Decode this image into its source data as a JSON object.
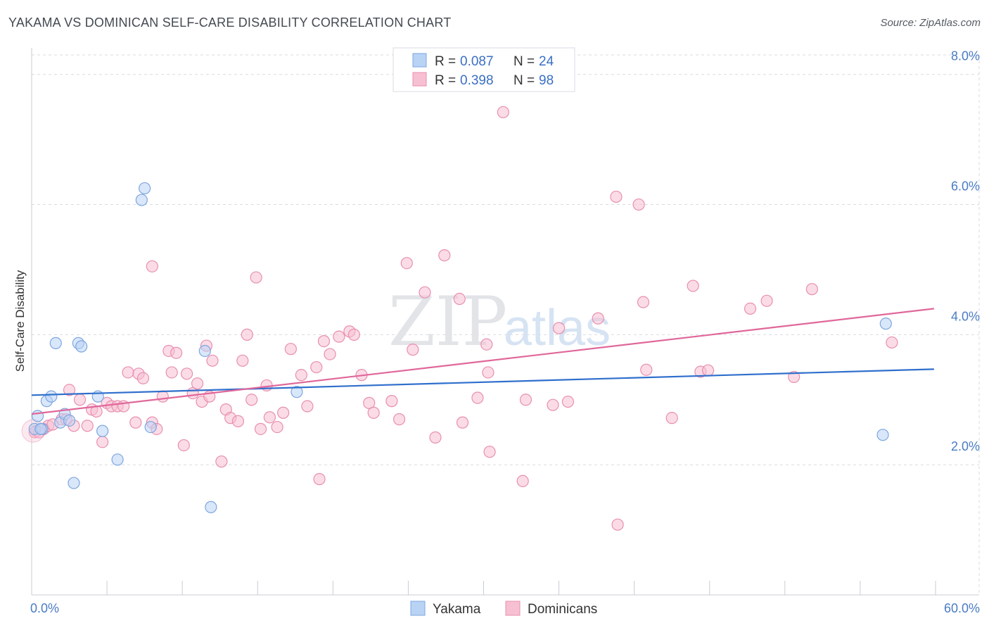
{
  "header": {
    "title": "YAKAMA VS DOMINICAN SELF-CARE DISABILITY CORRELATION CHART",
    "source": "Source: ZipAtlas.com"
  },
  "watermark": {
    "zip": "ZIP",
    "atlas": "atlas"
  },
  "legend": {
    "items": [
      {
        "r_label": "R =",
        "r_value": "0.087",
        "n_label": "N =",
        "n_value": "24"
      },
      {
        "r_label": "R =",
        "r_value": "0.398",
        "n_label": "N =",
        "n_value": "98"
      }
    ]
  },
  "colors": {
    "yakama_fill": "#b9d3f5",
    "yakama_stroke": "#7ea6de",
    "yakama_line": "#2f6fcc",
    "dominican_fill": "#f7bfd2",
    "dominican_stroke": "#e88fb0",
    "dominican_line": "#e0679a",
    "grid": "#d8dbe0",
    "tick_label": "#4a7cc4"
  },
  "chart_data": {
    "type": "scatter",
    "title": "YAKAMA VS DOMINICAN SELF-CARE DISABILITY CORRELATION CHART",
    "xlabel": "",
    "ylabel": "Self-Care Disability",
    "xlim": [
      0,
      60
    ],
    "ylim": [
      0,
      8.3
    ],
    "x_tick_labels": [
      "0.0%",
      "60.0%"
    ],
    "y_ticks": [
      2,
      4,
      6,
      8
    ],
    "y_tick_labels": [
      "2.0%",
      "4.0%",
      "6.0%",
      "8.0%"
    ],
    "grid": true,
    "legend_position": "top-center",
    "series": [
      {
        "name": "Yakama",
        "R": 0.087,
        "N": 24,
        "trend": {
          "x": [
            0,
            59.9
          ],
          "y": [
            3.07,
            3.47
          ]
        },
        "points": [
          [
            0.2,
            2.55
          ],
          [
            0.4,
            2.75
          ],
          [
            0.7,
            2.55
          ],
          [
            1.0,
            2.98
          ],
          [
            1.3,
            3.05
          ],
          [
            1.6,
            3.87
          ],
          [
            1.9,
            2.65
          ],
          [
            2.2,
            2.78
          ],
          [
            2.5,
            2.68
          ],
          [
            2.8,
            1.72
          ],
          [
            3.1,
            3.87
          ],
          [
            3.3,
            3.82
          ],
          [
            4.4,
            3.05
          ],
          [
            4.7,
            2.52
          ],
          [
            5.7,
            2.08
          ],
          [
            7.3,
            6.07
          ],
          [
            7.5,
            6.25
          ],
          [
            7.9,
            2.58
          ],
          [
            11.5,
            3.75
          ],
          [
            11.9,
            1.35
          ],
          [
            17.6,
            3.12
          ],
          [
            56.5,
            2.46
          ],
          [
            56.7,
            4.17
          ],
          [
            0.6,
            2.55
          ]
        ]
      },
      {
        "name": "Dominicans",
        "R": 0.398,
        "N": 98,
        "trend": {
          "x": [
            0,
            59.9
          ],
          "y": [
            2.78,
            4.4
          ]
        },
        "points": [
          [
            0.3,
            2.52
          ],
          [
            0.8,
            2.55
          ],
          [
            1.1,
            2.6
          ],
          [
            1.4,
            2.62
          ],
          [
            2.0,
            2.7
          ],
          [
            2.5,
            3.15
          ],
          [
            2.8,
            2.6
          ],
          [
            3.2,
            3.0
          ],
          [
            3.7,
            2.6
          ],
          [
            4.0,
            2.85
          ],
          [
            4.3,
            2.82
          ],
          [
            4.7,
            2.35
          ],
          [
            5.0,
            2.95
          ],
          [
            5.3,
            2.9
          ],
          [
            5.7,
            2.9
          ],
          [
            6.1,
            2.9
          ],
          [
            6.4,
            3.42
          ],
          [
            6.9,
            2.65
          ],
          [
            7.1,
            3.4
          ],
          [
            7.4,
            3.33
          ],
          [
            8.0,
            2.65
          ],
          [
            8.0,
            5.05
          ],
          [
            8.3,
            2.55
          ],
          [
            8.7,
            3.05
          ],
          [
            9.1,
            3.75
          ],
          [
            9.3,
            3.42
          ],
          [
            10.1,
            2.3
          ],
          [
            10.3,
            3.4
          ],
          [
            10.7,
            3.1
          ],
          [
            11.0,
            3.25
          ],
          [
            11.3,
            2.97
          ],
          [
            11.6,
            3.83
          ],
          [
            11.8,
            3.05
          ],
          [
            12.0,
            3.6
          ],
          [
            12.6,
            2.05
          ],
          [
            12.9,
            2.85
          ],
          [
            13.2,
            2.72
          ],
          [
            13.7,
            2.67
          ],
          [
            14.0,
            3.6
          ],
          [
            14.3,
            4.0
          ],
          [
            14.6,
            3.0
          ],
          [
            14.9,
            4.88
          ],
          [
            15.2,
            2.55
          ],
          [
            15.6,
            3.22
          ],
          [
            15.8,
            2.73
          ],
          [
            16.3,
            2.58
          ],
          [
            16.7,
            2.8
          ],
          [
            17.2,
            3.78
          ],
          [
            17.9,
            3.38
          ],
          [
            18.3,
            2.9
          ],
          [
            18.9,
            3.5
          ],
          [
            19.1,
            1.78
          ],
          [
            19.4,
            3.9
          ],
          [
            19.8,
            3.7
          ],
          [
            20.4,
            3.97
          ],
          [
            21.1,
            4.05
          ],
          [
            21.4,
            4.0
          ],
          [
            21.9,
            3.38
          ],
          [
            22.4,
            2.95
          ],
          [
            22.7,
            2.8
          ],
          [
            23.9,
            2.98
          ],
          [
            24.4,
            2.7
          ],
          [
            24.9,
            5.1
          ],
          [
            25.3,
            3.77
          ],
          [
            26.1,
            4.65
          ],
          [
            26.8,
            2.42
          ],
          [
            27.4,
            5.22
          ],
          [
            28.4,
            4.55
          ],
          [
            28.6,
            2.65
          ],
          [
            29.6,
            3.03
          ],
          [
            30.2,
            3.85
          ],
          [
            30.3,
            3.42
          ],
          [
            30.4,
            2.2
          ],
          [
            31.3,
            7.42
          ],
          [
            32.8,
            3.0
          ],
          [
            32.6,
            1.75
          ],
          [
            34.6,
            2.92
          ],
          [
            35.0,
            4.1
          ],
          [
            35.6,
            2.97
          ],
          [
            37.6,
            4.25
          ],
          [
            38.8,
            6.12
          ],
          [
            38.9,
            1.08
          ],
          [
            40.3,
            6.0
          ],
          [
            40.6,
            4.5
          ],
          [
            40.8,
            3.46
          ],
          [
            42.5,
            2.72
          ],
          [
            43.9,
            4.75
          ],
          [
            44.4,
            3.43
          ],
          [
            44.9,
            3.45
          ],
          [
            47.7,
            4.4
          ],
          [
            48.8,
            4.52
          ],
          [
            50.6,
            3.35
          ],
          [
            51.8,
            4.7
          ],
          [
            57.1,
            3.88
          ],
          [
            0.2,
            2.5
          ],
          [
            0.5,
            2.5
          ],
          [
            2.3,
            2.7
          ],
          [
            9.6,
            3.72
          ]
        ]
      }
    ]
  }
}
